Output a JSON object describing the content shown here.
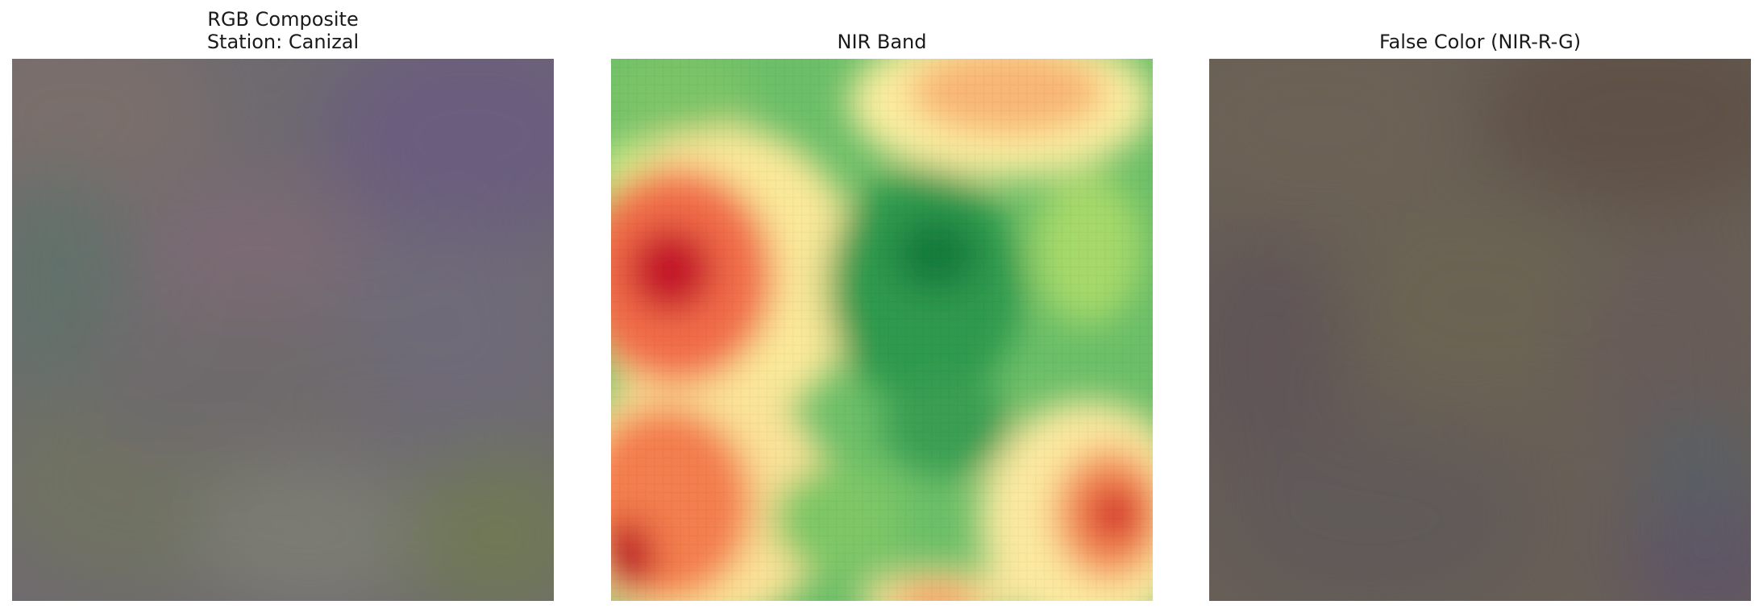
{
  "figure": {
    "panels": [
      {
        "title_line1": "RGB Composite",
        "title_line2": "Station: Canizal"
      },
      {
        "title": "NIR Band"
      },
      {
        "title": "False Color (NIR-R-G)"
      }
    ]
  },
  "colors": {
    "rgb_base": "#6f6b70",
    "nir_low": "#a50026",
    "nir_mid": "#ffffbf",
    "nir_high": "#006837",
    "false_base": "#6a6257"
  }
}
